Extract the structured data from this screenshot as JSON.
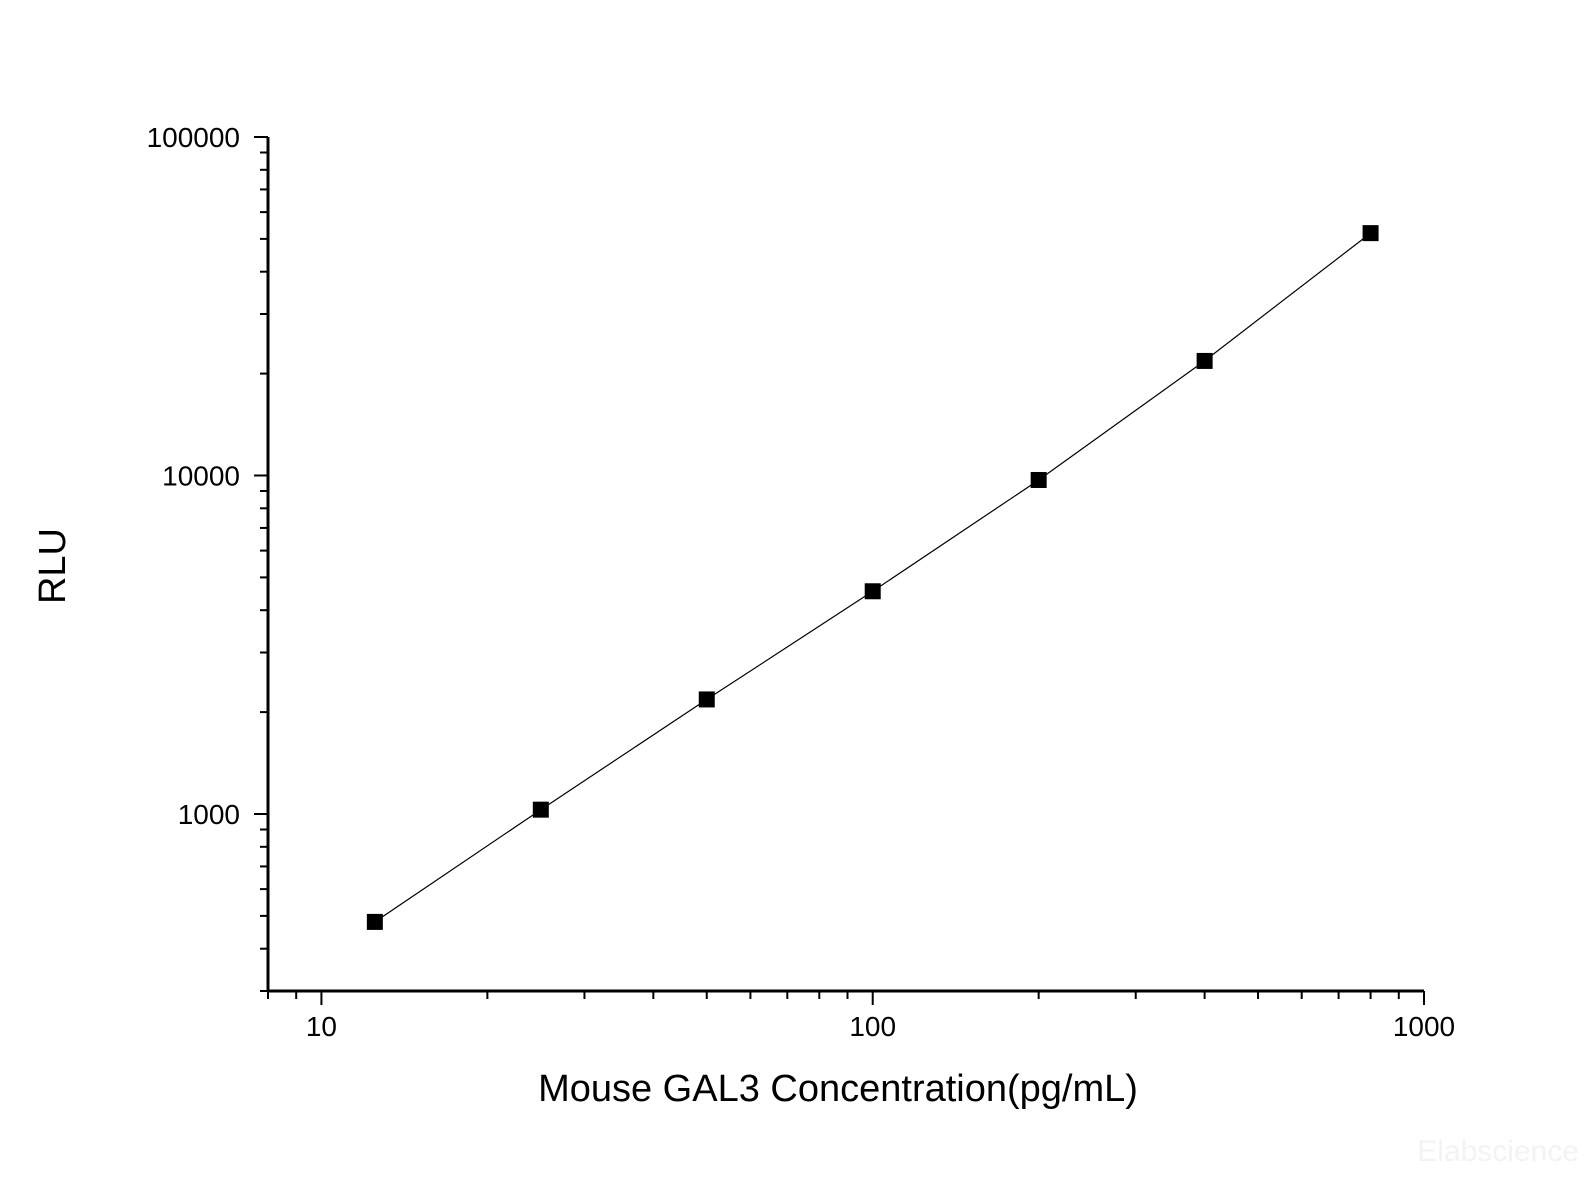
{
  "chart_data": {
    "type": "line",
    "xlabel": "Mouse GAL3 Concentration(pg/mL)",
    "ylabel": "RLU",
    "x_scale": "log",
    "y_scale": "log",
    "xlim": [
      8,
      1000
    ],
    "ylim": [
      300,
      100000
    ],
    "x_tick_labels": [
      "10",
      "100",
      "1000"
    ],
    "y_tick_labels": [
      "1000",
      "10000",
      "100000"
    ],
    "grid": false,
    "legend": "none",
    "series": [
      {
        "x": [
          12.5,
          25,
          50,
          100,
          200,
          400,
          800
        ],
        "y": [
          480,
          1030,
          2180,
          4550,
          9700,
          21800,
          52000
        ],
        "marker": "square",
        "line": "solid"
      }
    ],
    "colors": {
      "line": "#000000",
      "marker": "#000000",
      "axis": "#000000"
    }
  },
  "watermark": "Elabscience"
}
